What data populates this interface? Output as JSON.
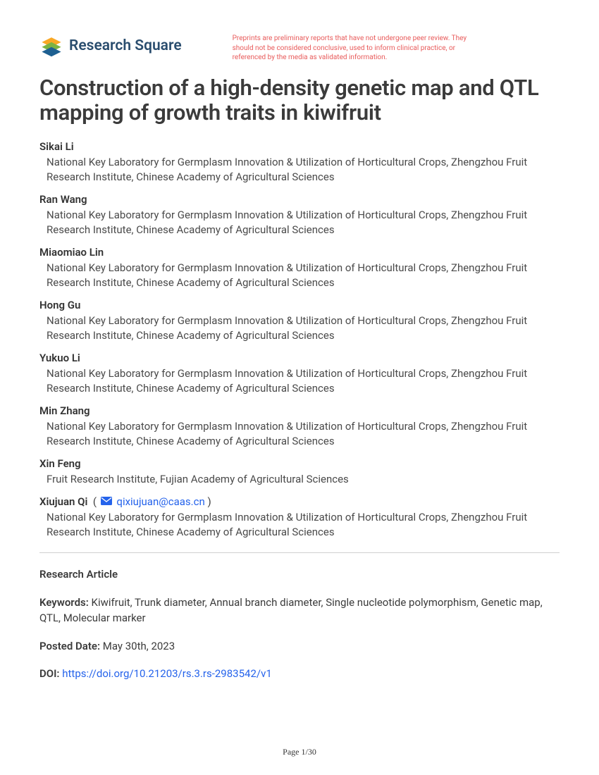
{
  "brand": "Research Square",
  "disclaimer": "Preprints are preliminary reports that have not undergone peer review. They should not be considered conclusive, used to inform clinical practice, or referenced by the media as validated information.",
  "title": "Construction of a high-density genetic map and QTL mapping of growth traits in kiwifruit",
  "authors": [
    {
      "name": "Sikai Li",
      "affiliation": "National Key Laboratory for Germplasm Innovation & Utilization of Horticultural Crops, Zhengzhou Fruit Research Institute, Chinese Academy of Agricultural Sciences"
    },
    {
      "name": "Ran Wang",
      "affiliation": "National Key Laboratory for Germplasm Innovation & Utilization of Horticultural Crops, Zhengzhou Fruit Research Institute, Chinese Academy of Agricultural Sciences"
    },
    {
      "name": "Miaomiao Lin",
      "affiliation": "National Key Laboratory for Germplasm Innovation & Utilization of Horticultural Crops, Zhengzhou Fruit Research Institute, Chinese Academy of Agricultural Sciences"
    },
    {
      "name": "Hong Gu",
      "affiliation": "National Key Laboratory for Germplasm Innovation & Utilization of Horticultural Crops, Zhengzhou Fruit Research Institute, Chinese Academy of Agricultural Sciences"
    },
    {
      "name": "Yukuo Li",
      "affiliation": "National Key Laboratory for Germplasm Innovation & Utilization of Horticultural Crops, Zhengzhou Fruit Research Institute, Chinese Academy of Agricultural Sciences"
    },
    {
      "name": "Min Zhang",
      "affiliation": "National Key Laboratory for Germplasm Innovation & Utilization of Horticultural Crops, Zhengzhou Fruit Research Institute, Chinese Academy of Agricultural Sciences"
    },
    {
      "name": "Xin Feng",
      "affiliation": "Fruit Research Institute, Fujian Academy of Agricultural Sciences"
    }
  ],
  "corresponding": {
    "name": "Xiujuan Qi",
    "email": "qixiujuan@caas.cn",
    "affiliation": "National Key Laboratory for Germplasm Innovation & Utilization of Horticultural Crops, Zhengzhou Fruit Research Institute, Chinese Academy of Agricultural Sciences"
  },
  "article_type": "Research Article",
  "keywords_label": "Keywords:",
  "keywords": "Kiwifruit, Trunk diameter, Annual branch diameter, Single nucleotide polymorphism, Genetic map, QTL, Molecular marker",
  "posted_label": "Posted Date:",
  "posted_date": "May 30th, 2023",
  "doi_label": "DOI:",
  "doi": "https://doi.org/10.21203/rs.3.rs-2983542/v1",
  "page_number": "Page 1/30",
  "colors": {
    "link": "#2563eb",
    "disclaimer": "#e85a5a",
    "text": "#3b3b3b",
    "logo_green": "#7cb342",
    "logo_yellow": "#f9a825",
    "logo_blue": "#1e6091"
  }
}
